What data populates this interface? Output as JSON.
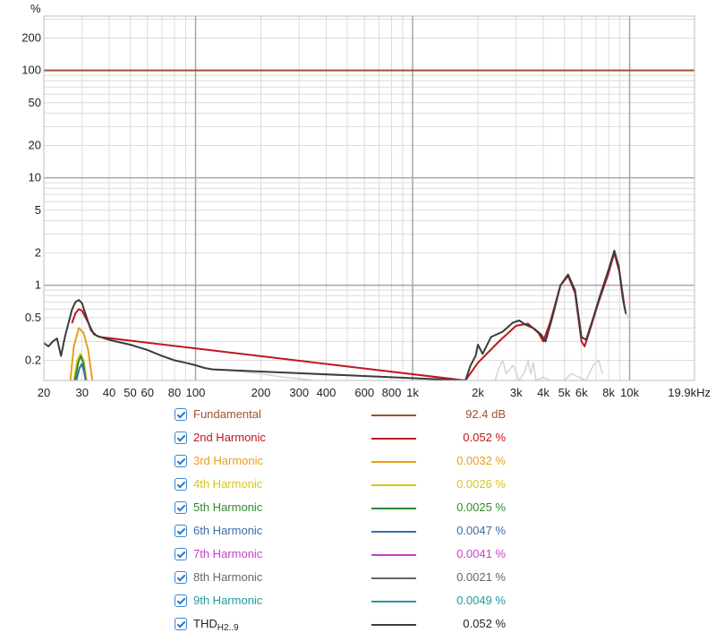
{
  "chart_data": {
    "type": "line",
    "ylabel": "%",
    "x_scale": "log",
    "y_scale": "log",
    "xlim": [
      20,
      19900
    ],
    "ylim": [
      0.13,
      320
    ],
    "grid": true,
    "x_ticks": [
      {
        "v": 20,
        "label": "20"
      },
      {
        "v": 30,
        "label": "30"
      },
      {
        "v": 40,
        "label": "40"
      },
      {
        "v": 50,
        "label": "50"
      },
      {
        "v": 60,
        "label": "60"
      },
      {
        "v": 80,
        "label": "80"
      },
      {
        "v": 100,
        "label": "100"
      },
      {
        "v": 200,
        "label": "200"
      },
      {
        "v": 300,
        "label": "300"
      },
      {
        "v": 400,
        "label": "400"
      },
      {
        "v": 600,
        "label": "600"
      },
      {
        "v": 800,
        "label": "800"
      },
      {
        "v": 1000,
        "label": "1k"
      },
      {
        "v": 2000,
        "label": "2k"
      },
      {
        "v": 3000,
        "label": "3k"
      },
      {
        "v": 4000,
        "label": "4k"
      },
      {
        "v": 5000,
        "label": "5k"
      },
      {
        "v": 6000,
        "label": "6k"
      },
      {
        "v": 8000,
        "label": "8k"
      },
      {
        "v": 10000,
        "label": "10k"
      },
      {
        "v": 19900,
        "label": "19.9kHz"
      }
    ],
    "y_ticks": [
      {
        "v": 200,
        "label": "200"
      },
      {
        "v": 100,
        "label": "100"
      },
      {
        "v": 50,
        "label": "50"
      },
      {
        "v": 20,
        "label": "20"
      },
      {
        "v": 10,
        "label": "10"
      },
      {
        "v": 5,
        "label": "5"
      },
      {
        "v": 2,
        "label": "2"
      },
      {
        "v": 1,
        "label": "1"
      },
      {
        "v": 0.5,
        "label": "0.5"
      },
      {
        "v": 0.2,
        "label": "0.2"
      }
    ],
    "series": [
      {
        "name": "Fundamental",
        "color": "#a0522d",
        "value": "92.4 dB",
        "points": [
          [
            20,
            100
          ],
          [
            19900,
            100
          ]
        ]
      },
      {
        "name": "2nd Harmonic",
        "color": "#c0161d",
        "value": "0.052 %",
        "points": [
          [
            27,
            0.45
          ],
          [
            28,
            0.55
          ],
          [
            29,
            0.6
          ],
          [
            30,
            0.58
          ],
          [
            32,
            0.45
          ],
          [
            34,
            0.35
          ],
          [
            36,
            0.33
          ],
          [
            1750,
            0.13
          ],
          [
            2000,
            0.19
          ],
          [
            2500,
            0.3
          ],
          [
            3000,
            0.42
          ],
          [
            3400,
            0.44
          ],
          [
            3800,
            0.36
          ],
          [
            4000,
            0.3
          ],
          [
            4300,
            0.45
          ],
          [
            4800,
            1.0
          ],
          [
            5200,
            1.22
          ],
          [
            5600,
            0.85
          ],
          [
            6000,
            0.3
          ],
          [
            6200,
            0.27
          ],
          [
            6600,
            0.4
          ],
          [
            7200,
            0.7
          ],
          [
            8000,
            1.3
          ],
          [
            8500,
            2.0
          ],
          [
            9000,
            1.3
          ],
          [
            9500,
            0.6
          ]
        ]
      },
      {
        "name": "3rd Harmonic",
        "color": "#e89f1a",
        "value": "0.0032 %",
        "points": [
          [
            26.5,
            0.13
          ],
          [
            27.5,
            0.27
          ],
          [
            29,
            0.4
          ],
          [
            30.5,
            0.36
          ],
          [
            32,
            0.25
          ],
          [
            33,
            0.16
          ],
          [
            33.5,
            0.13
          ]
        ]
      },
      {
        "name": "4th Harmonic",
        "color": "#d8c61c",
        "value": "0.0026 %",
        "points": [
          [
            27.5,
            0.13
          ],
          [
            28.5,
            0.2
          ],
          [
            29.5,
            0.23
          ],
          [
            30.5,
            0.2
          ],
          [
            31.5,
            0.13
          ]
        ]
      },
      {
        "name": "5th Harmonic",
        "color": "#2f8a34",
        "value": "0.0025 %",
        "points": [
          [
            27.8,
            0.13
          ],
          [
            28.8,
            0.19
          ],
          [
            29.6,
            0.22
          ],
          [
            30.4,
            0.19
          ],
          [
            31.2,
            0.13
          ]
        ]
      },
      {
        "name": "6th Harmonic",
        "color": "#3a6ea5",
        "value": "0.0047 %",
        "points": [
          [
            28.2,
            0.13
          ],
          [
            29.2,
            0.17
          ],
          [
            29.9,
            0.185
          ],
          [
            30.6,
            0.16
          ],
          [
            31.2,
            0.13
          ]
        ]
      },
      {
        "name": "7th Harmonic",
        "color": "#c83fc8",
        "value": "0.0041 %",
        "points": []
      },
      {
        "name": "8th Harmonic",
        "color": "#666666",
        "value": "0.0021 %",
        "points": []
      },
      {
        "name": "9th Harmonic",
        "color": "#1f9aa0",
        "value": "0.0049 %",
        "points": []
      },
      {
        "name": "THD",
        "name_sub": "H2..9",
        "color": "#3c3c3c",
        "value": "0.052 %",
        "points": [
          [
            20,
            0.29
          ],
          [
            21,
            0.27
          ],
          [
            22,
            0.3
          ],
          [
            23,
            0.32
          ],
          [
            24,
            0.22
          ],
          [
            25,
            0.33
          ],
          [
            27,
            0.6
          ],
          [
            28,
            0.7
          ],
          [
            29,
            0.73
          ],
          [
            30,
            0.68
          ],
          [
            31,
            0.55
          ],
          [
            33,
            0.38
          ],
          [
            35,
            0.34
          ],
          [
            40,
            0.31
          ],
          [
            50,
            0.28
          ],
          [
            60,
            0.25
          ],
          [
            70,
            0.22
          ],
          [
            80,
            0.2
          ],
          [
            90,
            0.19
          ],
          [
            100,
            0.18
          ],
          [
            110,
            0.17
          ],
          [
            120,
            0.165
          ],
          [
            1750,
            0.13
          ],
          [
            1850,
            0.18
          ],
          [
            1950,
            0.22
          ],
          [
            2000,
            0.28
          ],
          [
            2100,
            0.23
          ],
          [
            2300,
            0.33
          ],
          [
            2600,
            0.37
          ],
          [
            2900,
            0.45
          ],
          [
            3100,
            0.47
          ],
          [
            3300,
            0.43
          ],
          [
            3600,
            0.4
          ],
          [
            3900,
            0.35
          ],
          [
            4100,
            0.3
          ],
          [
            4400,
            0.5
          ],
          [
            4800,
            1.0
          ],
          [
            5200,
            1.26
          ],
          [
            5600,
            0.9
          ],
          [
            6000,
            0.33
          ],
          [
            6300,
            0.31
          ],
          [
            6800,
            0.5
          ],
          [
            7300,
            0.8
          ],
          [
            8000,
            1.4
          ],
          [
            8500,
            2.1
          ],
          [
            8900,
            1.5
          ],
          [
            9300,
            0.75
          ],
          [
            9600,
            0.55
          ]
        ]
      },
      {
        "name": "THD continuation",
        "color": "#d4d4d4",
        "points": [
          [
            120,
            0.165
          ],
          [
            150,
            0.16
          ],
          [
            200,
            0.15
          ],
          [
            250,
            0.14
          ],
          [
            300,
            0.135
          ],
          [
            350,
            0.13
          ]
        ]
      },
      {
        "name": "THD tail",
        "color": "#d4d4d4",
        "points": [
          [
            9300,
            0.72
          ],
          [
            9600,
            0.55
          ],
          [
            10000,
            0.48
          ]
        ]
      },
      {
        "name": "Noise residue",
        "color": "#d4d4d4",
        "points": [
          [
            2400,
            0.13
          ],
          [
            2500,
            0.17
          ],
          [
            2600,
            0.2
          ],
          [
            2700,
            0.15
          ],
          [
            2900,
            0.18
          ],
          [
            3100,
            0.13
          ],
          [
            3300,
            0.16
          ],
          [
            3400,
            0.2
          ],
          [
            3500,
            0.15
          ],
          [
            3600,
            0.19
          ],
          [
            3700,
            0.13
          ],
          [
            4000,
            0.14
          ],
          [
            4300,
            0.13
          ],
          [
            5000,
            0.13
          ],
          [
            5400,
            0.15
          ],
          [
            5800,
            0.14
          ],
          [
            6300,
            0.13
          ],
          [
            6800,
            0.18
          ],
          [
            7200,
            0.2
          ],
          [
            7500,
            0.15
          ]
        ]
      }
    ]
  }
}
